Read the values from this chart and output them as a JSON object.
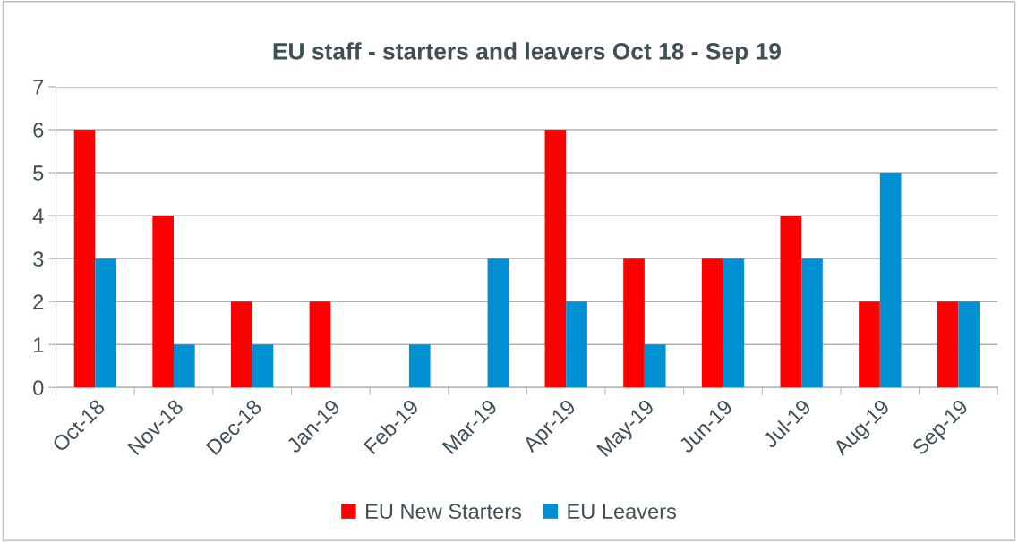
{
  "chart_data": {
    "type": "bar",
    "title": "EU staff - starters and leavers Oct 18 - Sep 19",
    "categories": [
      "Oct-18",
      "Nov-18",
      "Dec-18",
      "Jan-19",
      "Feb-19",
      "Mar-19",
      "Apr-19",
      "May-19",
      "Jun-19",
      "Jul-19",
      "Aug-19",
      "Sep-19"
    ],
    "series": [
      {
        "name": "EU New Starters",
        "color": "#ff0000",
        "values": [
          6,
          4,
          2,
          2,
          0,
          0,
          6,
          3,
          3,
          4,
          2,
          2
        ]
      },
      {
        "name": "EU Leavers",
        "color": "#0091d5",
        "values": [
          3,
          1,
          1,
          0,
          1,
          3,
          2,
          1,
          3,
          3,
          5,
          2
        ]
      }
    ],
    "ylim": [
      0,
      7
    ],
    "yticks": [
      0,
      1,
      2,
      3,
      4,
      5,
      6,
      7
    ],
    "grid": "y",
    "legend": "bottom"
  }
}
